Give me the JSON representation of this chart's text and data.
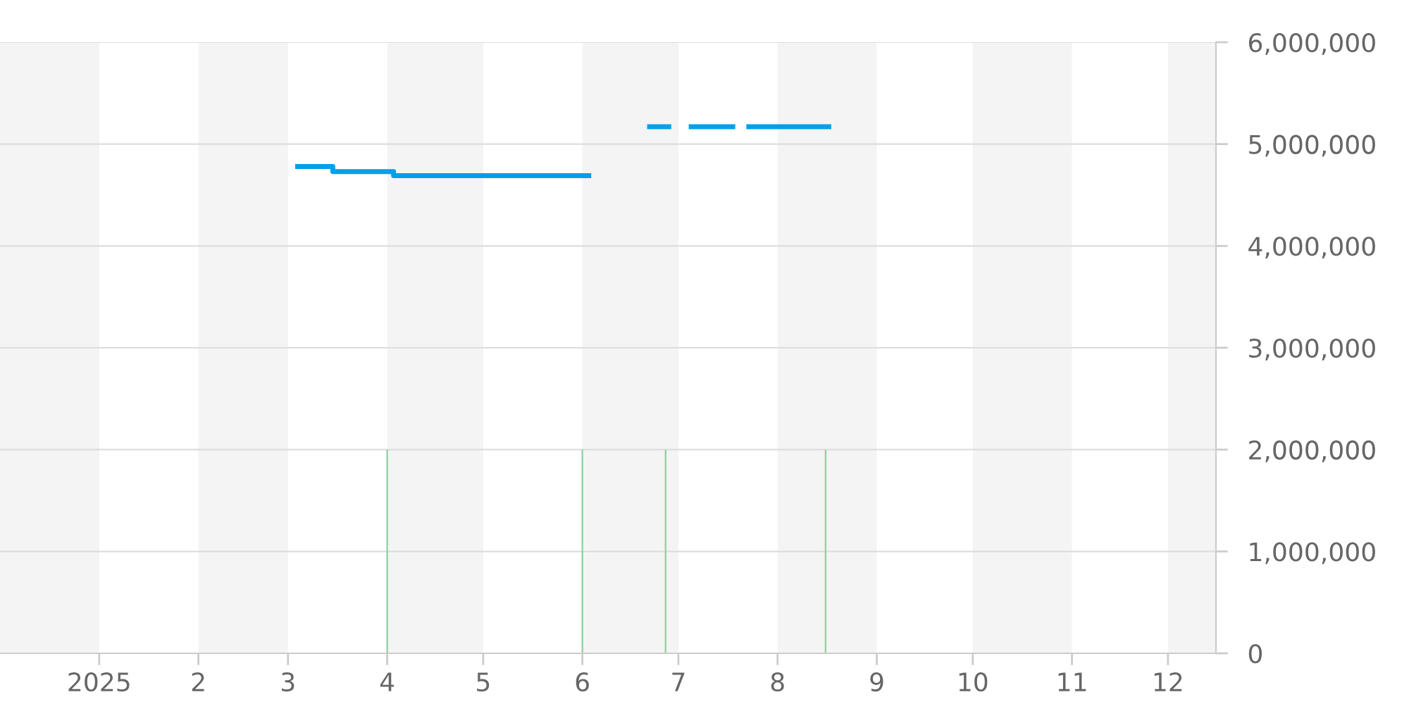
{
  "chart_data": {
    "type": "line",
    "xlim": [
      "2024-12-01",
      "2025-12-16"
    ],
    "xticks": [
      {
        "value": "2025-01-01",
        "label": "2025"
      },
      {
        "value": "2025-02-01",
        "label": "2"
      },
      {
        "value": "2025-03-01",
        "label": "3"
      },
      {
        "value": "2025-04-01",
        "label": "4"
      },
      {
        "value": "2025-05-01",
        "label": "5"
      },
      {
        "value": "2025-06-01",
        "label": "6"
      },
      {
        "value": "2025-07-01",
        "label": "7"
      },
      {
        "value": "2025-08-01",
        "label": "8"
      },
      {
        "value": "2025-09-01",
        "label": "9"
      },
      {
        "value": "2025-10-01",
        "label": "10"
      },
      {
        "value": "2025-11-01",
        "label": "11"
      },
      {
        "value": "2025-12-01",
        "label": "12"
      }
    ],
    "ylim": [
      0,
      6000000
    ],
    "yticks": [
      0,
      {
        "value": 1000000,
        "label": "1,000,000"
      },
      {
        "value": 2000000,
        "label": "2,000,000"
      },
      {
        "value": 3000000,
        "label": "3,000,000"
      },
      {
        "value": 4000000,
        "label": "4,000,000"
      },
      {
        "value": 5000000,
        "label": "5,000,000"
      },
      {
        "value": 6000000,
        "label": "6,000,000"
      }
    ],
    "grid": "y",
    "series": [
      {
        "type": "bar",
        "color": "#8fd19e",
        "x": [
          "2025-04-01",
          "2025-06-01",
          "2025-06-27",
          "2025-08-16"
        ],
        "values": [
          2000000,
          2000000,
          2000000,
          2000000
        ]
      },
      {
        "color": "#00a0e9",
        "x": [
          "2025-03-04",
          "2025-03-15",
          "2025-03-15",
          "2025-04-03",
          "2025-04-03",
          "2025-06-03",
          "2025-06-10",
          "2025-06-22",
          "2025-06-28",
          "2025-07-01",
          "2025-07-05",
          "2025-07-18",
          "2025-07-20",
          "2025-07-23",
          "2025-08-17"
        ],
        "values": [
          4780000,
          4780000,
          4730000,
          4730000,
          4690000,
          4690000,
          null,
          5170000,
          5170000,
          null,
          5170000,
          5170000,
          null,
          5170000,
          5170000
        ]
      }
    ],
    "bands": [
      {
        "axis": "x",
        "from": "2024-12-01",
        "to": "2025-01-01",
        "color": "#f4f4f4"
      },
      {
        "axis": "x",
        "from": "2025-02-01",
        "to": "2025-03-01",
        "color": "#f4f4f4"
      },
      {
        "axis": "x",
        "from": "2025-04-01",
        "to": "2025-05-01",
        "color": "#f4f4f4"
      },
      {
        "axis": "x",
        "from": "2025-06-01",
        "to": "2025-07-01",
        "color": "#f4f4f4"
      },
      {
        "axis": "x",
        "from": "2025-08-01",
        "to": "2025-09-01",
        "color": "#f4f4f4"
      },
      {
        "axis": "x",
        "from": "2025-10-01",
        "to": "2025-11-01",
        "color": "#f4f4f4"
      },
      {
        "axis": "x",
        "from": "2025-12-01",
        "to": "2025-12-16",
        "color": "#f4f4f4"
      }
    ]
  }
}
